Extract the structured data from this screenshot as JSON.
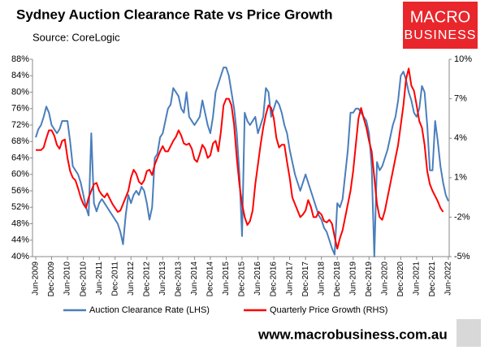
{
  "chart_data": {
    "type": "line",
    "title": "Sydney Auction Clearance Rate vs Price Growth",
    "subtitle": "Source: CoreLogic",
    "logo": {
      "line1": "MACRO",
      "line2": "BUSINESS"
    },
    "footer": "www.macrobusiness.com.au",
    "categories": [
      "Jun-2009",
      null,
      null,
      null,
      null,
      null,
      "Dec-2009",
      null,
      null,
      null,
      null,
      null,
      "Jun-2010",
      null,
      null,
      null,
      null,
      null,
      "Dec-2010",
      null,
      null,
      null,
      null,
      null,
      "Jun-2011",
      null,
      null,
      null,
      null,
      null,
      "Dec-2011",
      null,
      null,
      null,
      null,
      null,
      "Jun-2012",
      null,
      null,
      null,
      null,
      null,
      "Dec-2012",
      null,
      null,
      null,
      null,
      null,
      "Jun-2013",
      null,
      null,
      null,
      null,
      null,
      "Dec-2013",
      null,
      null,
      null,
      null,
      null,
      "Jun-2014",
      null,
      null,
      null,
      null,
      null,
      "Dec-2014",
      null,
      null,
      null,
      null,
      null,
      "Jun-2015",
      null,
      null,
      null,
      null,
      null,
      "Dec-2015",
      null,
      null,
      null,
      null,
      null,
      "Jun-2016",
      null,
      null,
      null,
      null,
      null,
      "Dec-2016",
      null,
      null,
      null,
      null,
      null,
      "Jun-2017",
      null,
      null,
      null,
      null,
      null,
      "Dec-2017",
      null,
      null,
      null,
      null,
      null,
      "Jun-2018",
      null,
      null,
      null,
      null,
      null,
      "Dec-2018",
      null,
      null,
      null,
      null,
      null,
      "Jun-2019",
      null,
      null,
      null,
      null,
      null,
      "Dec-2019",
      null,
      null,
      null,
      null,
      null,
      "Jun-2020",
      null,
      null,
      null,
      null,
      null,
      "Dec-2020",
      null,
      null,
      null,
      null,
      null,
      "Jun-2021",
      null,
      null,
      null,
      null,
      null,
      "Dec-2021",
      null,
      null,
      null,
      null,
      null,
      "Jun-2022"
    ],
    "series": [
      {
        "name": "Auction Clearance Rate (LHS)",
        "color": "#4a7ebb",
        "values": [
          69,
          71,
          72,
          74,
          76.5,
          75,
          72,
          71,
          70,
          71,
          73,
          73,
          73,
          68,
          62,
          61,
          60,
          58,
          55,
          52,
          50,
          70,
          53,
          51,
          53,
          54,
          53,
          52,
          51,
          50,
          49,
          48,
          46,
          43,
          50,
          55,
          53,
          55,
          56,
          55,
          57,
          56,
          53,
          49,
          52,
          64,
          65,
          69,
          70,
          73,
          76,
          77,
          81,
          80,
          79,
          76,
          75,
          80,
          74,
          73,
          72,
          73,
          74,
          78,
          75,
          72,
          70,
          74,
          80,
          82,
          84,
          86,
          86,
          84,
          80,
          76,
          70,
          60,
          45,
          75,
          73,
          72,
          73,
          74,
          70,
          72,
          74,
          81,
          80,
          74,
          76,
          78,
          77,
          75,
          72,
          70,
          66,
          63,
          60,
          58,
          56,
          58,
          60,
          58,
          56,
          54,
          52,
          50,
          49,
          47,
          46,
          44,
          42,
          40.5,
          53,
          52,
          54,
          60,
          66,
          75,
          75,
          76,
          76,
          75,
          74,
          73,
          70,
          62,
          40,
          63,
          61,
          62,
          64,
          66,
          69,
          72,
          74,
          78,
          84,
          85,
          83,
          80,
          78,
          75,
          74,
          76,
          81.5,
          80,
          72,
          61,
          61,
          73,
          68,
          62,
          58,
          55,
          53.5
        ]
      },
      {
        "name": "Quarterly Price Growth (RHS)",
        "color": "#ff0000",
        "axis": "y2",
        "values": [
          3.1,
          3.1,
          3.1,
          3.3,
          4.0,
          4.6,
          4.6,
          4.2,
          3.5,
          3.2,
          3.8,
          3.9,
          2.5,
          1.5,
          1.0,
          0.8,
          0.2,
          -0.5,
          -1.0,
          -1.3,
          -0.5,
          0,
          0.5,
          0.6,
          0,
          -0.3,
          -0.5,
          -0.2,
          -0.6,
          -1.0,
          -1.3,
          -1.6,
          -1.5,
          -1.0,
          -0.5,
          0,
          1.0,
          1.6,
          1.3,
          0.7,
          0.5,
          0.8,
          1.5,
          1.6,
          1.2,
          2.0,
          2.5,
          3.0,
          3.4,
          3.0,
          3.0,
          3.4,
          3.8,
          4.1,
          4.6,
          4.2,
          3.6,
          3.5,
          3.6,
          3.2,
          2.4,
          2.2,
          2.8,
          3.5,
          3.2,
          2.5,
          2.7,
          3.6,
          3.8,
          3.0,
          4.5,
          6.5,
          7.0,
          7.0,
          6.5,
          5.0,
          2.5,
          0.5,
          -1.0,
          -2.0,
          -2.6,
          -2.3,
          -1.5,
          0.5,
          2.0,
          3.5,
          4.8,
          5.8,
          6.5,
          6.3,
          5.5,
          4.0,
          3.3,
          3.5,
          3.5,
          2.2,
          1.0,
          -0.5,
          -1.0,
          -1.5,
          -2.0,
          -1.8,
          -1.5,
          -0.7,
          -1.2,
          -2.0,
          -2.0,
          -1.6,
          -1.8,
          -2.3,
          -2.4,
          -2.2,
          -2.5,
          -3.5,
          -4.4,
          -3.6,
          -3.0,
          -2.0,
          -1.0,
          0,
          1.5,
          3.5,
          5.5,
          6.3,
          5.5,
          4.8,
          3.8,
          3.0,
          1.0,
          -1.0,
          -2.0,
          -2.2,
          -1.5,
          -0.5,
          0.5,
          1.5,
          2.5,
          3.5,
          5.0,
          6.5,
          8.5,
          9.3,
          8.0,
          7.6,
          6.5,
          5.3,
          4.8,
          3.5,
          1.5,
          0.5,
          0,
          -0.4,
          -0.8,
          -1.3,
          -1.6,
          null,
          null
        ]
      }
    ],
    "ylim": [
      40,
      88
    ],
    "yticks": [
      {
        "value": 40,
        "label": "40%"
      },
      {
        "value": 44,
        "label": "44%"
      },
      {
        "value": 48,
        "label": "48%"
      },
      {
        "value": 52,
        "label": "52%"
      },
      {
        "value": 56,
        "label": "56%"
      },
      {
        "value": 60,
        "label": "60%"
      },
      {
        "value": 64,
        "label": "64%"
      },
      {
        "value": 68,
        "label": "68%"
      },
      {
        "value": 72,
        "label": "72%"
      },
      {
        "value": 76,
        "label": "76%"
      },
      {
        "value": 80,
        "label": "80%"
      },
      {
        "value": 84,
        "label": "84%"
      },
      {
        "value": 88,
        "label": "88%"
      }
    ],
    "y2lim": [
      -5,
      10
    ],
    "y2ticks": [
      {
        "value": -5,
        "label": "-5%"
      },
      {
        "value": -2,
        "label": "-2%"
      },
      {
        "value": 1,
        "label": "1%"
      },
      {
        "value": 4,
        "label": "4%"
      },
      {
        "value": 7,
        "label": "7%"
      },
      {
        "value": 10,
        "label": "10%"
      }
    ],
    "grid": false,
    "legend": "bottom"
  }
}
